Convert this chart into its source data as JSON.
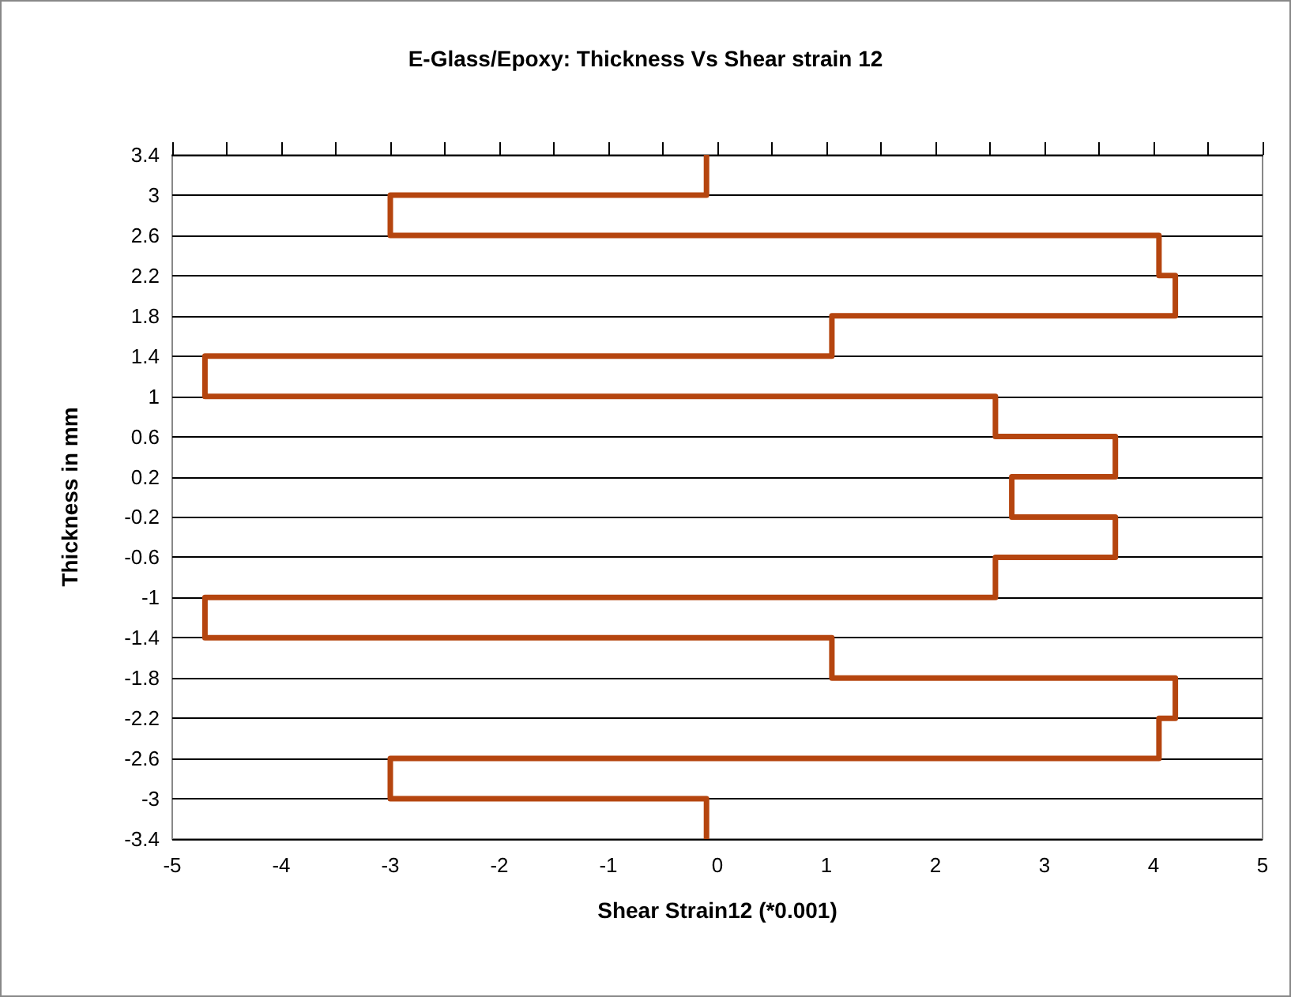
{
  "chart_data": {
    "type": "line",
    "title": "E-Glass/Epoxy: Thickness Vs Shear strain 12",
    "xlabel": "Shear Strain12 (*0.001)",
    "ylabel": "Thickness in mm",
    "series": [
      {
        "color": "#b5450f",
        "x": [
          -0.1,
          -0.1,
          -3,
          -3,
          4.05,
          4.05,
          4.2,
          4.2,
          1.05,
          1.05,
          -4.7,
          -4.7,
          2.55,
          2.55,
          3.65,
          3.65,
          2.7,
          2.7,
          3.65,
          3.65,
          2.55,
          2.55,
          -4.7,
          -4.7,
          1.05,
          1.05,
          4.2,
          4.2,
          4.05,
          4.05,
          -3,
          -3,
          -0.1,
          -0.1
        ],
        "values": [
          3.4,
          3,
          3,
          2.6,
          2.6,
          2.2,
          2.2,
          1.8,
          1.8,
          1.4,
          1.4,
          1,
          1,
          0.6,
          0.6,
          0.2,
          0.2,
          -0.2,
          -0.2,
          -0.6,
          -0.6,
          -1,
          -1,
          -1.4,
          -1.4,
          -1.8,
          -1.8,
          -2.2,
          -2.2,
          -2.6,
          -2.6,
          -3,
          -3,
          -3.4
        ]
      }
    ],
    "xlim": [
      -5,
      5
    ],
    "xticks": [
      -5,
      -4,
      -3,
      -2,
      -1,
      0,
      1,
      2,
      3,
      4,
      5
    ],
    "ylim": [
      -3.4,
      3.4
    ],
    "yticks": [
      -3.4,
      -3,
      -2.6,
      -2.2,
      -1.8,
      -1.4,
      -1,
      -0.6,
      -0.2,
      0.2,
      0.6,
      1,
      1.4,
      1.8,
      2.2,
      2.6,
      3,
      3.4
    ],
    "grid": "y",
    "marker": "none",
    "line_style": "solid"
  }
}
